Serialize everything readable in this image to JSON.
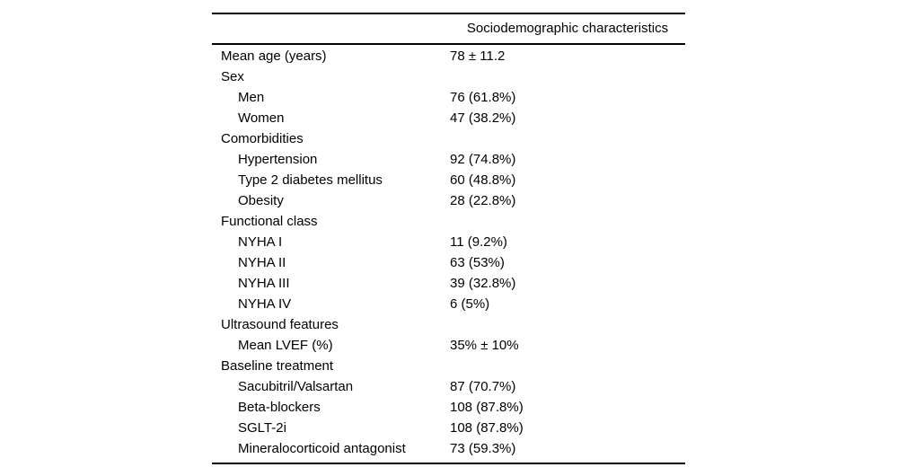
{
  "table": {
    "header": {
      "label_column_title": "",
      "value_column_title": "Sociodemographic characteristics"
    },
    "rows": [
      {
        "label": "Mean age (years)",
        "value": "78 ± 11.2",
        "indent": 0
      },
      {
        "label": "Sex",
        "value": "",
        "indent": 0
      },
      {
        "label": "Men",
        "value": "76 (61.8%)",
        "indent": 1
      },
      {
        "label": "Women",
        "value": "47 (38.2%)",
        "indent": 1
      },
      {
        "label": "Comorbidities",
        "value": "",
        "indent": 0
      },
      {
        "label": "Hypertension",
        "value": "92 (74.8%)",
        "indent": 1
      },
      {
        "label": "Type 2 diabetes mellitus",
        "value": "60 (48.8%)",
        "indent": 1
      },
      {
        "label": "Obesity",
        "value": "28 (22.8%)",
        "indent": 1
      },
      {
        "label": "Functional class",
        "value": "",
        "indent": 0
      },
      {
        "label": "NYHA I",
        "value": "11 (9.2%)",
        "indent": 1
      },
      {
        "label": "NYHA II",
        "value": "63 (53%)",
        "indent": 1
      },
      {
        "label": "NYHA III",
        "value": "39 (32.8%)",
        "indent": 1
      },
      {
        "label": "NYHA IV",
        "value": "6 (5%)",
        "indent": 1
      },
      {
        "label": "Ultrasound features",
        "value": "",
        "indent": 0
      },
      {
        "label": "Mean LVEF (%)",
        "value": "35% ± 10%",
        "indent": 1
      },
      {
        "label": "Baseline treatment",
        "value": "",
        "indent": 0
      },
      {
        "label": "Sacubitril/Valsartan",
        "value": "87 (70.7%)",
        "indent": 1
      },
      {
        "label": "Beta-blockers",
        "value": "108 (87.8%)",
        "indent": 1
      },
      {
        "label": "SGLT-2i",
        "value": "108 (87.8%)",
        "indent": 1
      },
      {
        "label": "Mineralocorticoid antagonist",
        "value": "73 (59.3%)",
        "indent": 1
      }
    ],
    "colors": {
      "text": "#000000",
      "rule": "#000000",
      "background": "#ffffff"
    }
  }
}
